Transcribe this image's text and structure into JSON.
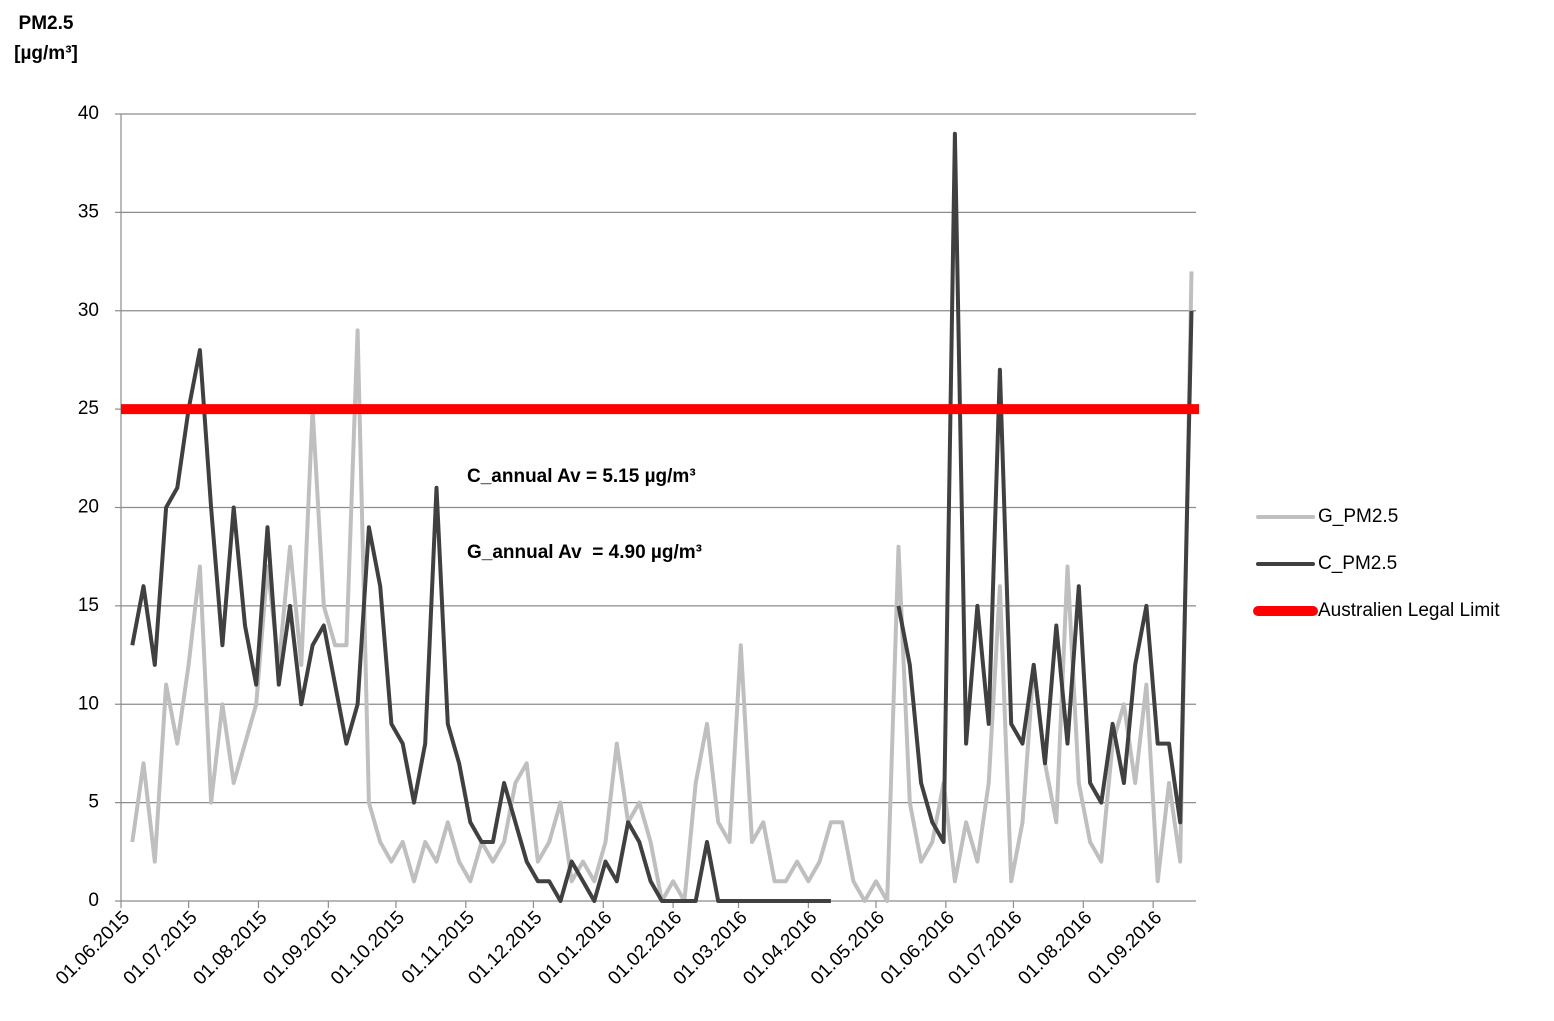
{
  "chart_data": {
    "type": "line",
    "y_label": [
      "PM2.5",
      "[µg/m³]"
    ],
    "x": [
      "06.06.2015",
      "11.06.2015",
      "16.06.2015",
      "21.06.2015",
      "26.06.2015",
      "01.07.2015",
      "06.07.2015",
      "11.07.2015",
      "16.07.2015",
      "21.07.2015",
      "26.07.2015",
      "31.07.2015",
      "05.08.2015",
      "10.08.2015",
      "15.08.2015",
      "20.08.2015",
      "25.08.2015",
      "30.08.2015",
      "04.09.2015",
      "09.09.2015",
      "14.09.2015",
      "19.09.2015",
      "24.09.2015",
      "29.09.2015",
      "04.10.2015",
      "09.10.2015",
      "14.10.2015",
      "19.10.2015",
      "24.10.2015",
      "29.10.2015",
      "03.11.2015",
      "08.11.2015",
      "13.11.2015",
      "18.11.2015",
      "23.11.2015",
      "28.11.2015",
      "03.12.2015",
      "08.12.2015",
      "13.12.2015",
      "18.12.2015",
      "23.12.2015",
      "28.12.2015",
      "02.01.2016",
      "07.01.2016",
      "12.01.2016",
      "17.01.2016",
      "22.01.2016",
      "27.01.2016",
      "01.02.2016",
      "06.02.2016",
      "11.02.2016",
      "16.02.2016",
      "21.02.2016",
      "26.02.2016",
      "02.03.2016",
      "07.03.2016",
      "12.03.2016",
      "17.03.2016",
      "22.03.2016",
      "27.03.2016",
      "01.04.2016",
      "06.04.2016",
      "11.04.2016",
      "16.04.2016",
      "21.04.2016",
      "26.04.2016",
      "01.05.2016",
      "06.05.2016",
      "11.05.2016",
      "16.05.2016",
      "21.05.2016",
      "26.05.2016",
      "31.05.2016",
      "05.06.2016",
      "10.06.2016",
      "15.06.2016",
      "20.06.2016",
      "25.06.2016",
      "30.06.2016",
      "05.07.2016",
      "10.07.2016",
      "15.07.2016",
      "20.07.2016",
      "25.07.2016",
      "30.07.2016",
      "04.08.2016",
      "09.08.2016",
      "14.08.2016",
      "19.08.2016",
      "24.08.2016",
      "29.08.2016",
      "03.09.2016",
      "08.09.2016",
      "13.09.2016",
      "18.09.2016"
    ],
    "series": [
      {
        "name": "G_PM2.5",
        "color": "#bfbfbf",
        "values": [
          3,
          7,
          2,
          11,
          8,
          12,
          17,
          5,
          10,
          6,
          8,
          10,
          17,
          12,
          18,
          12,
          25,
          15,
          13,
          13,
          29,
          5,
          3,
          2,
          3,
          1,
          3,
          2,
          4,
          2,
          1,
          3,
          2,
          3,
          6,
          7,
          2,
          3,
          5,
          1,
          2,
          1,
          3,
          8,
          4,
          5,
          3,
          0,
          1,
          0,
          6,
          9,
          4,
          3,
          13,
          3,
          4,
          1,
          1,
          2,
          1,
          2,
          4,
          4,
          1,
          0,
          1,
          0,
          18,
          5,
          2,
          3,
          6,
          1,
          4,
          2,
          6,
          16,
          1,
          4,
          12,
          7,
          4,
          17,
          6,
          3,
          2,
          8,
          10,
          6,
          11,
          1,
          6,
          2,
          32
        ]
      },
      {
        "name": "C_PM2.5",
        "color": "#404040",
        "values": [
          13,
          16,
          12,
          20,
          21,
          25,
          28,
          20,
          13,
          20,
          14,
          11,
          19,
          11,
          15,
          10,
          13,
          14,
          11,
          8,
          10,
          19,
          16,
          9,
          8,
          5,
          8,
          21,
          9,
          7,
          4,
          3,
          3,
          6,
          4,
          2,
          1,
          1,
          0,
          2,
          1,
          0,
          2,
          1,
          4,
          3,
          1,
          0,
          0,
          0,
          0,
          3,
          0,
          0,
          0,
          0,
          0,
          0,
          0,
          0,
          0,
          0,
          0,
          null,
          null,
          null,
          null,
          null,
          15,
          12,
          6,
          4,
          3,
          39,
          8,
          15,
          9,
          27,
          9,
          8,
          12,
          7,
          14,
          8,
          16,
          6,
          5,
          9,
          6,
          12,
          15,
          8,
          8,
          4,
          30
        ]
      }
    ],
    "reference_lines": [
      {
        "name": "Australien Legal Limit",
        "color": "#ff0000",
        "value": 25
      }
    ],
    "annotations": [
      {
        "text": "C_annual Av = 5.15 µg/m³",
        "color": "#000000"
      },
      {
        "text": "G_annual Av  = 4.90 µg/m³",
        "color": "#999999"
      }
    ],
    "xlim": [
      "01.06.2015",
      "20.09.2016"
    ],
    "xticks": [
      "01.06.2015",
      "01.07.2015",
      "01.08.2015",
      "01.09.2015",
      "01.10.2015",
      "01.11.2015",
      "01.12.2015",
      "01.01.2016",
      "01.02.2016",
      "01.03.2016",
      "01.04.2016",
      "01.05.2016",
      "01.06.2016",
      "01.07.2016",
      "01.08.2016",
      "01.09.2016"
    ],
    "ylim": [
      0,
      40
    ],
    "yticks": [
      0,
      5,
      10,
      15,
      20,
      25,
      30,
      35,
      40
    ],
    "grid": true,
    "legend": "right"
  }
}
